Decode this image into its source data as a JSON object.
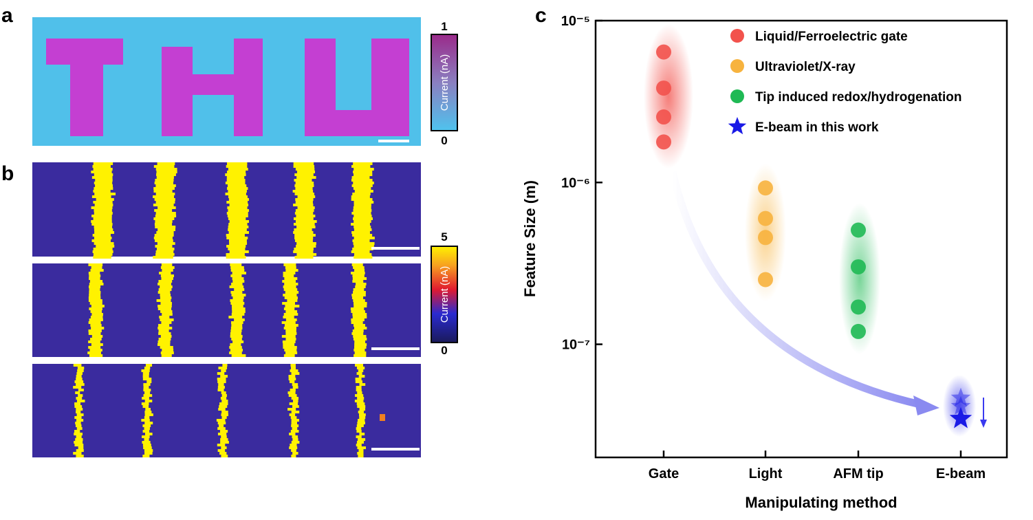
{
  "panels": {
    "a": {
      "label": "a",
      "colorbar": {
        "label": "Current (nA)",
        "ticks": [
          "1",
          "0"
        ]
      }
    },
    "b": {
      "label": "b",
      "colorbar": {
        "label": "Current (nA)",
        "ticks": [
          "5",
          "0"
        ]
      }
    }
  },
  "chart_data": {
    "type": "scatter",
    "label": "c",
    "xlabel": "Manipulating method",
    "ylabel": "Feature Size (m)",
    "categories": [
      "Gate",
      "Light",
      "AFM tip",
      "E-beam"
    ],
    "log_y": true,
    "ylim": [
      2e-08,
      1e-05
    ],
    "yticks": [
      {
        "value": 1e-05,
        "label": "10⁻⁵"
      },
      {
        "value": 1e-06,
        "label": "10⁻⁶"
      },
      {
        "value": 1e-07,
        "label": "10⁻⁷"
      }
    ],
    "legend": "upper right",
    "series": [
      {
        "name": "Liquid/Ferroelectric gate",
        "color": "#f2524c",
        "marker": "circle",
        "x": [
          "Gate",
          "Gate",
          "Gate",
          "Gate"
        ],
        "values": [
          6.4e-06,
          3.83e-06,
          2.54e-06,
          1.78e-06
        ]
      },
      {
        "name": "Ultraviolet/X-ray",
        "color": "#f7b33e",
        "marker": "circle",
        "x": [
          "Light",
          "Light",
          "Light",
          "Light"
        ],
        "values": [
          9.25e-07,
          5.99e-07,
          4.57e-07,
          2.51e-07
        ]
      },
      {
        "name": "Tip induced redox/hydrogenation",
        "color": "#1fb954",
        "marker": "circle",
        "x": [
          "AFM tip",
          "AFM tip",
          "AFM tip",
          "AFM tip"
        ],
        "values": [
          5.08e-07,
          3.01e-07,
          1.7e-07,
          1.2e-07
        ]
      },
      {
        "name": "E-beam in this work",
        "color": "#1a1ae6",
        "marker": "star",
        "x": [
          "E-beam",
          "E-beam",
          "E-beam"
        ],
        "values": [
          4.66e-08,
          4.14e-08,
          3.47e-08
        ]
      }
    ]
  }
}
